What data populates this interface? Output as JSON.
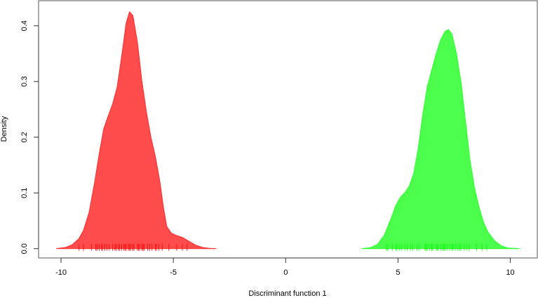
{
  "chart_data": {
    "type": "area",
    "title": "",
    "xlabel": "Discriminant function 1",
    "ylabel": "Density",
    "xlim": [
      -11,
      11.2
    ],
    "ylim": [
      -0.0167,
      0.445
    ],
    "xticks": [
      -10,
      -5,
      0,
      5,
      10
    ],
    "xtick_labels": [
      "-10",
      "-5",
      "0",
      "5",
      "10"
    ],
    "yticks": [
      0.0,
      0.1,
      0.2,
      0.3,
      0.4
    ],
    "ytick_labels": [
      "0.0",
      "0.1",
      "0.2",
      "0.3",
      "0.4"
    ],
    "grid": false,
    "series": [
      {
        "color": "#ff4d4d",
        "stroke": "#ff3333",
        "x": [
          -10.2,
          -9.8,
          -9.5,
          -9.2,
          -9.0,
          -8.75,
          -8.5,
          -8.3,
          -8.1,
          -7.9,
          -7.7,
          -7.5,
          -7.3,
          -7.1,
          -6.95,
          -6.8,
          -6.6,
          -6.4,
          -6.2,
          -6.0,
          -5.8,
          -5.6,
          -5.45,
          -5.3,
          -5.1,
          -4.9,
          -4.6,
          -4.3,
          -4.0,
          -3.7,
          -3.4,
          -3.1
        ],
        "y": [
          0.0,
          0.002,
          0.007,
          0.018,
          0.033,
          0.065,
          0.12,
          0.17,
          0.215,
          0.238,
          0.26,
          0.29,
          0.345,
          0.405,
          0.425,
          0.418,
          0.37,
          0.3,
          0.245,
          0.2,
          0.165,
          0.12,
          0.075,
          0.04,
          0.028,
          0.024,
          0.02,
          0.013,
          0.006,
          0.002,
          0.0005,
          0.0
        ]
      },
      {
        "color": "#4dff4d",
        "stroke": "#33ff33",
        "x": [
          3.4,
          3.8,
          4.1,
          4.4,
          4.7,
          4.9,
          5.1,
          5.3,
          5.5,
          5.7,
          5.9,
          6.1,
          6.3,
          6.5,
          6.7,
          6.9,
          7.1,
          7.25,
          7.4,
          7.6,
          7.8,
          8.0,
          8.2,
          8.4,
          8.6,
          8.8,
          9.0,
          9.3,
          9.6,
          9.9,
          10.4
        ],
        "y": [
          0.0,
          0.002,
          0.008,
          0.025,
          0.055,
          0.077,
          0.092,
          0.1,
          0.112,
          0.135,
          0.18,
          0.24,
          0.29,
          0.32,
          0.35,
          0.375,
          0.39,
          0.393,
          0.385,
          0.35,
          0.3,
          0.23,
          0.16,
          0.11,
          0.075,
          0.048,
          0.03,
          0.014,
          0.005,
          0.001,
          0.0
        ]
      }
    ],
    "rug": [
      {
        "color": "#ff0000",
        "values": [
          -9.2,
          -9.0,
          -8.65,
          -8.45,
          -8.4,
          -8.3,
          -8.2,
          -8.15,
          -8.05,
          -7.95,
          -7.85,
          -7.7,
          -7.6,
          -7.55,
          -7.45,
          -7.4,
          -7.3,
          -7.2,
          -7.15,
          -7.1,
          -7.0,
          -6.95,
          -6.9,
          -6.8,
          -6.75,
          -6.6,
          -6.55,
          -6.5,
          -6.4,
          -6.35,
          -6.3,
          -6.15,
          -6.05,
          -5.95,
          -5.8,
          -5.75,
          -5.65,
          -5.5,
          -5.2,
          -4.85,
          -4.6,
          -4.4
        ]
      },
      {
        "color": "#00ff00",
        "values": [
          4.5,
          4.55,
          4.75,
          4.9,
          4.95,
          5.05,
          5.15,
          5.3,
          5.4,
          5.55,
          5.65,
          5.85,
          5.95,
          6.2,
          6.25,
          6.3,
          6.4,
          6.5,
          6.55,
          6.7,
          6.75,
          6.8,
          6.9,
          7.0,
          7.05,
          7.1,
          7.2,
          7.3,
          7.4,
          7.45,
          7.55,
          7.65,
          7.75,
          7.8,
          7.95,
          8.05,
          8.15,
          8.5,
          8.75,
          8.95
        ]
      }
    ]
  }
}
